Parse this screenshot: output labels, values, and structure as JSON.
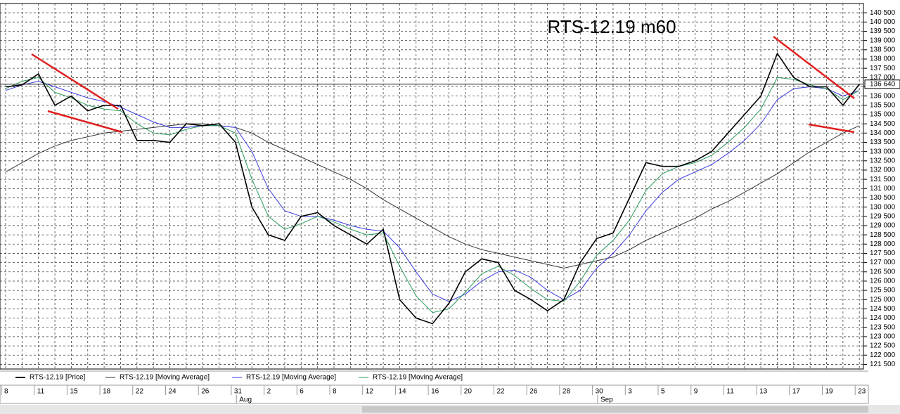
{
  "chart_data": {
    "type": "line",
    "title": "RTS-12.19 m60",
    "categories": [
      "8",
      null,
      "11",
      null,
      "15",
      null,
      "18",
      null,
      "22",
      null,
      "24",
      null,
      "26",
      null,
      "31",
      null,
      "2",
      null,
      "6",
      null,
      "8",
      null,
      "12",
      null,
      "14",
      null,
      "16",
      null,
      "20",
      null,
      "22",
      null,
      "26",
      null,
      "28",
      null,
      "30",
      null,
      "3",
      null,
      "5",
      null,
      "9",
      null,
      "11",
      null,
      "13",
      null,
      "17",
      null,
      "19",
      null,
      "23"
    ],
    "months": [
      null,
      null,
      null,
      null,
      null,
      null,
      null,
      null,
      null,
      null,
      null,
      null,
      null,
      null,
      null,
      "Aug",
      null,
      null,
      null,
      null,
      null,
      null,
      null,
      null,
      null,
      null,
      null,
      null,
      null,
      null,
      null,
      null,
      null,
      null,
      null,
      null,
      null,
      "Sep",
      null,
      null,
      null,
      null,
      null,
      null,
      null,
      null,
      null,
      null,
      null,
      null,
      null,
      null,
      null
    ],
    "series": [
      {
        "name": "RTS-12.19 [Price]",
        "color": "#000000",
        "values": [
          136500,
          136600,
          137200,
          135500,
          136000,
          135200,
          135500,
          135500,
          133600,
          133600,
          133500,
          134500,
          134400,
          134500,
          133500,
          130000,
          128500,
          128200,
          129500,
          129700,
          129000,
          128500,
          128000,
          128800,
          125000,
          124000,
          123700,
          124800,
          126500,
          127200,
          127000,
          125500,
          125000,
          124400,
          125000,
          127000,
          128300,
          128600,
          130500,
          132400,
          132200,
          132200,
          132500,
          133000,
          134000,
          135000,
          136000,
          138300,
          137000,
          136500,
          136500,
          135500,
          136640
        ],
        "value_labels": [
          null,
          null,
          null,
          null,
          null,
          null,
          null,
          null,
          null,
          null,
          null,
          null,
          null,
          null,
          null,
          null,
          null,
          null,
          null,
          null,
          null,
          null,
          null,
          null,
          null,
          null,
          null,
          null,
          null,
          null,
          null,
          null,
          null,
          null,
          null,
          null,
          null,
          null,
          null,
          null,
          null,
          null,
          null,
          null,
          null,
          null,
          null,
          null,
          null,
          null,
          null,
          null,
          "136 640"
        ]
      },
      {
        "name": "RTS-12.19 [Moving Average]",
        "color": "#333333",
        "values": [
          131900,
          132400,
          132900,
          133300,
          133600,
          133800,
          134000,
          134100,
          134200,
          134300,
          134400,
          134500,
          134500,
          134400,
          134300,
          134000,
          133500,
          133100,
          132700,
          132300,
          131900,
          131500,
          131000,
          130400,
          129900,
          129400,
          128900,
          128400,
          128000,
          127700,
          127500,
          127300,
          127100,
          126900,
          126700,
          126900,
          127100,
          127300,
          127700,
          128200,
          128600,
          129000,
          129400,
          129900,
          130300,
          130800,
          131300,
          131800,
          132400,
          133000,
          133500,
          134000,
          134400
        ]
      },
      {
        "name": "RTS-12.19 [Moving Average]",
        "color": "#3a3adf",
        "values": [
          136300,
          136600,
          136800,
          136500,
          136200,
          135900,
          135700,
          135400,
          135000,
          134600,
          134300,
          134300,
          134400,
          134400,
          134300,
          133000,
          131000,
          129800,
          129500,
          129500,
          129300,
          129000,
          128800,
          128700,
          127800,
          126500,
          125300,
          124900,
          125300,
          126000,
          126500,
          126600,
          126200,
          125500,
          125000,
          125500,
          126700,
          127500,
          128500,
          129800,
          130800,
          131500,
          131900,
          132300,
          132900,
          133600,
          134500,
          135800,
          136400,
          136500,
          136400,
          136000,
          136300
        ]
      },
      {
        "name": "RTS-12.19 [Moving Average]",
        "color": "#2a9a5a",
        "values": [
          136400,
          136800,
          137000,
          136200,
          135900,
          135500,
          135300,
          135200,
          134500,
          134000,
          133900,
          134200,
          134400,
          134400,
          134000,
          131500,
          129500,
          128800,
          129100,
          129500,
          129200,
          128800,
          128500,
          128600,
          126800,
          125200,
          124300,
          124500,
          125400,
          126400,
          126800,
          126300,
          125600,
          125000,
          124900,
          126000,
          127400,
          128200,
          129300,
          130900,
          131800,
          132200,
          132400,
          132800,
          133500,
          134300,
          135300,
          137000,
          136900,
          136600,
          136400,
          135800,
          136300
        ]
      }
    ],
    "ylim": [
      121250,
      141000
    ],
    "yticks": [
      {
        "value": 121500,
        "label": "121 500"
      },
      {
        "value": 122000,
        "label": "122 000"
      },
      {
        "value": 122500,
        "label": "122 500"
      },
      {
        "value": 123000,
        "label": "123 000"
      },
      {
        "value": 123500,
        "label": "123 500"
      },
      {
        "value": 124000,
        "label": "124 000"
      },
      {
        "value": 124500,
        "label": "124 500"
      },
      {
        "value": 125000,
        "label": "125 000"
      },
      {
        "value": 125500,
        "label": "125 500"
      },
      {
        "value": 126000,
        "label": "126 000"
      },
      {
        "value": 126500,
        "label": "126 500"
      },
      {
        "value": 127000,
        "label": "127 000"
      },
      {
        "value": 127500,
        "label": "127 500"
      },
      {
        "value": 128000,
        "label": "128 000"
      },
      {
        "value": 128500,
        "label": "128 500"
      },
      {
        "value": 129000,
        "label": "129 000"
      },
      {
        "value": 129500,
        "label": "129 500"
      },
      {
        "value": 130000,
        "label": "130 000"
      },
      {
        "value": 130500,
        "label": "130 500"
      },
      {
        "value": 131000,
        "label": "131 000"
      },
      {
        "value": 131500,
        "label": "131 500"
      },
      {
        "value": 132000,
        "label": "132 000"
      },
      {
        "value": 132500,
        "label": "132 500"
      },
      {
        "value": 133000,
        "label": "133 000"
      },
      {
        "value": 133500,
        "label": "133 500"
      },
      {
        "value": 134000,
        "label": "134 000"
      },
      {
        "value": 134500,
        "label": "134 500"
      },
      {
        "value": 135000,
        "label": "135 000"
      },
      {
        "value": 135500,
        "label": "135 500"
      },
      {
        "value": 136000,
        "label": "136 000"
      },
      {
        "value": 136500,
        "label": "136 500"
      },
      {
        "value": 137000,
        "label": "137 000"
      },
      {
        "value": 137500,
        "label": "137 500"
      },
      {
        "value": 138000,
        "label": "138 000"
      },
      {
        "value": 138500,
        "label": "138 500"
      },
      {
        "value": 139000,
        "label": "139 000"
      },
      {
        "value": 139500,
        "label": "139 500"
      },
      {
        "value": 140000,
        "label": "140 000"
      },
      {
        "value": 140500,
        "label": "140 500"
      }
    ],
    "grid": true
  }
}
